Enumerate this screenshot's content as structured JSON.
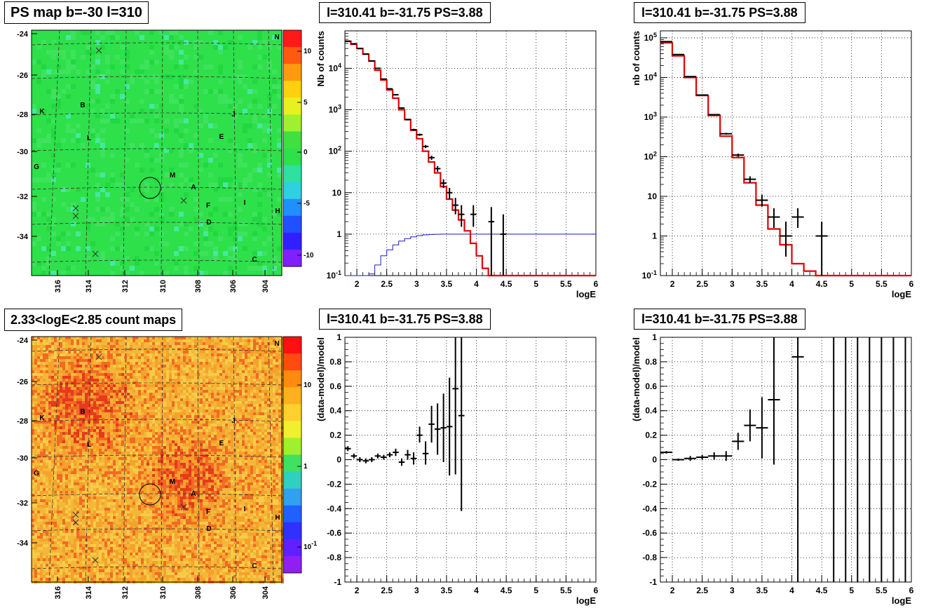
{
  "titles": {
    "ps_map": "PS map b=-30 l=310",
    "count_map": "2.33<logE<2.85 count maps",
    "spec1": "l=310.41 b=-31.75 PS=3.88",
    "spec2": "l=310.41 b=-31.75 PS=3.88",
    "res1": "l=310.41 b=-31.75 PS=3.88",
    "res2": "l=310.41 b=-31.75 PS=3.88"
  },
  "maps": {
    "b_ticks": [
      "-24",
      "-26",
      "-28",
      "-30",
      "-32",
      "-34"
    ],
    "l_ticks": [
      "316",
      "314",
      "312",
      "310",
      "308",
      "306",
      "304"
    ],
    "ps_colorbar_ticks": [
      "10",
      "5",
      "0",
      "-5",
      "-10"
    ],
    "count_colorbar_ticks": [
      "10",
      "1",
      "10^-1"
    ],
    "source_labels": [
      "N",
      "K",
      "B",
      "J",
      "E",
      "L",
      "G",
      "M",
      "A",
      "F",
      "I",
      "H",
      "D",
      "C"
    ],
    "colors": {
      "ps_bg": "#2ee04a",
      "count_bg": "#f0a030",
      "count_hot": "#e84a20"
    }
  },
  "chart_data": [
    {
      "type": "line",
      "panel": "spectrum-1",
      "title": "l=310.41 b=-31.75 PS=3.88",
      "xlabel": "logE",
      "ylabel": "Nb of counts",
      "xlim": [
        1.8,
        6
      ],
      "ylim": [
        0.1,
        80000
      ],
      "yscale": "log",
      "xticks": [
        "2",
        "2.5",
        "3",
        "3.5",
        "4",
        "4.5",
        "5",
        "5.5",
        "6"
      ],
      "yticks": [
        "10^-1",
        "1",
        "10",
        "10^2",
        "10^3",
        "10^4"
      ],
      "grid": true,
      "model_bins": {
        "edges": [
          1.8,
          1.9,
          2.0,
          2.1,
          2.2,
          2.3,
          2.4,
          2.5,
          2.6,
          2.7,
          2.8,
          2.9,
          3.0,
          3.1,
          3.2,
          3.3,
          3.4,
          3.5,
          3.6,
          3.7,
          3.8,
          3.9,
          4.0,
          4.1,
          4.2,
          6.0
        ],
        "values": [
          45000,
          38000,
          30000,
          22000,
          15000,
          9000,
          5200,
          3000,
          1900,
          1000,
          580,
          320,
          200,
          100,
          55,
          30,
          14,
          7,
          3.8,
          2.2,
          1.2,
          0.6,
          0.3,
          0.15,
          0.1
        ]
      },
      "efficiency_bins": {
        "edges": [
          1.8,
          2.2,
          2.3,
          2.4,
          2.5,
          2.6,
          2.7,
          2.8,
          2.9,
          3.0,
          3.1,
          3.2,
          3.3,
          3.4,
          3.5,
          3.6,
          3.7,
          3.8,
          6.0
        ],
        "values": [
          0.1,
          0.11,
          0.18,
          0.3,
          0.42,
          0.55,
          0.68,
          0.78,
          0.86,
          0.92,
          0.96,
          0.98,
          0.99,
          1.0,
          1.0,
          1.0,
          1.0,
          1.0
        ]
      },
      "data_points": [
        {
          "x": 1.85,
          "y": 45000,
          "ylo": 44000,
          "yhi": 46000,
          "xerr": 0.05
        },
        {
          "x": 1.95,
          "y": 39000,
          "ylo": 38000,
          "yhi": 40000,
          "xerr": 0.05
        },
        {
          "x": 2.05,
          "y": 30000,
          "ylo": 29500,
          "yhi": 30500,
          "xerr": 0.05
        },
        {
          "x": 2.15,
          "y": 22000,
          "ylo": 21500,
          "yhi": 22500,
          "xerr": 0.05
        },
        {
          "x": 2.25,
          "y": 15000,
          "ylo": 14700,
          "yhi": 15300,
          "xerr": 0.05
        },
        {
          "x": 2.35,
          "y": 10000,
          "ylo": 9800,
          "yhi": 10200,
          "xerr": 0.05
        },
        {
          "x": 2.45,
          "y": 5500,
          "ylo": 5400,
          "yhi": 5600,
          "xerr": 0.05
        },
        {
          "x": 2.55,
          "y": 3200,
          "ylo": 3100,
          "yhi": 3300,
          "xerr": 0.05
        },
        {
          "x": 2.65,
          "y": 2300,
          "ylo": 2200,
          "yhi": 2400,
          "xerr": 0.05
        },
        {
          "x": 2.75,
          "y": 1100,
          "ylo": 1050,
          "yhi": 1150,
          "xerr": 0.05
        },
        {
          "x": 2.85,
          "y": 580,
          "ylo": 555,
          "yhi": 605,
          "xerr": 0.05
        },
        {
          "x": 2.95,
          "y": 330,
          "ylo": 312,
          "yhi": 348,
          "xerr": 0.05
        },
        {
          "x": 3.05,
          "y": 250,
          "ylo": 235,
          "yhi": 265,
          "xerr": 0.05
        },
        {
          "x": 3.15,
          "y": 130,
          "ylo": 119,
          "yhi": 141,
          "xerr": 0.05
        },
        {
          "x": 3.25,
          "y": 70,
          "ylo": 62,
          "yhi": 78,
          "xerr": 0.05
        },
        {
          "x": 3.35,
          "y": 38,
          "ylo": 32,
          "yhi": 44,
          "xerr": 0.05
        },
        {
          "x": 3.45,
          "y": 17,
          "ylo": 13,
          "yhi": 21,
          "xerr": 0.05
        },
        {
          "x": 3.55,
          "y": 10,
          "ylo": 7,
          "yhi": 13,
          "xerr": 0.05
        },
        {
          "x": 3.65,
          "y": 5,
          "ylo": 3,
          "yhi": 7.5,
          "xerr": 0.05
        },
        {
          "x": 3.75,
          "y": 3,
          "ylo": 1.5,
          "yhi": 5,
          "xerr": 0.05
        },
        {
          "x": 3.95,
          "y": 3,
          "ylo": 1.5,
          "yhi": 5,
          "xerr": 0.05
        },
        {
          "x": 4.25,
          "y": 2,
          "ylo": 0.1,
          "yhi": 4.5,
          "xerr": 0.05
        },
        {
          "x": 4.45,
          "y": 1,
          "ylo": 0.1,
          "yhi": 3,
          "xerr": 0.05
        }
      ]
    },
    {
      "type": "line",
      "panel": "spectrum-2",
      "title": "l=310.41 b=-31.75 PS=3.88",
      "xlabel": "logE",
      "ylabel": "nb of counts",
      "xlim": [
        1.8,
        6
      ],
      "ylim": [
        0.1,
        150000
      ],
      "yscale": "log",
      "xticks": [
        "2",
        "2.5",
        "3",
        "3.5",
        "4",
        "4.5",
        "5",
        "5.5",
        "6"
      ],
      "yticks": [
        "10^-1",
        "1",
        "10",
        "10^2",
        "10^3",
        "10^4",
        "10^5"
      ],
      "grid": true,
      "model_bins": {
        "edges": [
          1.8,
          2.0,
          2.2,
          2.4,
          2.6,
          2.8,
          3.0,
          3.2,
          3.4,
          3.6,
          3.8,
          4.0,
          4.2,
          4.4,
          6.0
        ],
        "values": [
          75000,
          35000,
          10000,
          3500,
          1100,
          330,
          95,
          22,
          6,
          1.5,
          0.6,
          0.2,
          0.13,
          0.1
        ]
      },
      "data_points": [
        {
          "x": 1.9,
          "y": 80000,
          "ylo": 78000,
          "yhi": 82000,
          "xerr": 0.1
        },
        {
          "x": 2.1,
          "y": 38000,
          "ylo": 37000,
          "yhi": 39000,
          "xerr": 0.1
        },
        {
          "x": 2.3,
          "y": 10500,
          "ylo": 10200,
          "yhi": 10800,
          "xerr": 0.1
        },
        {
          "x": 2.5,
          "y": 3600,
          "ylo": 3500,
          "yhi": 3700,
          "xerr": 0.1
        },
        {
          "x": 2.7,
          "y": 1150,
          "ylo": 1100,
          "yhi": 1200,
          "xerr": 0.1
        },
        {
          "x": 2.9,
          "y": 380,
          "ylo": 360,
          "yhi": 400,
          "xerr": 0.1
        },
        {
          "x": 3.1,
          "y": 110,
          "ylo": 100,
          "yhi": 120,
          "xerr": 0.1
        },
        {
          "x": 3.3,
          "y": 27,
          "ylo": 22,
          "yhi": 32,
          "xerr": 0.1
        },
        {
          "x": 3.5,
          "y": 8,
          "ylo": 5.5,
          "yhi": 11,
          "xerr": 0.1
        },
        {
          "x": 3.7,
          "y": 3,
          "ylo": 1.6,
          "yhi": 5,
          "xerr": 0.1
        },
        {
          "x": 3.9,
          "y": 1,
          "ylo": 0.3,
          "yhi": 2.3,
          "xerr": 0.1
        },
        {
          "x": 4.1,
          "y": 3,
          "ylo": 1.6,
          "yhi": 5,
          "xerr": 0.1
        },
        {
          "x": 4.5,
          "y": 1,
          "ylo": 0.1,
          "yhi": 2.3,
          "xerr": 0.1
        }
      ]
    },
    {
      "type": "scatter",
      "panel": "residual-1",
      "title": "l=310.41 b=-31.75 PS=3.88",
      "xlabel": "logE",
      "ylabel": "(data-model)/model",
      "xlim": [
        1.8,
        6
      ],
      "ylim": [
        -1,
        1
      ],
      "xticks": [
        "2",
        "2.5",
        "3",
        "3.5",
        "4",
        "4.5",
        "5",
        "5.5",
        "6"
      ],
      "yticks": [
        "-1",
        "-0.8",
        "-0.6",
        "-0.4",
        "-0.2",
        "0",
        "0.2",
        "0.4",
        "0.6",
        "0.8",
        "1"
      ],
      "grid": true,
      "data_points": [
        {
          "x": 1.85,
          "y": 0.09,
          "ylo": 0.07,
          "yhi": 0.11,
          "xerr": 0.05
        },
        {
          "x": 1.95,
          "y": 0.03,
          "ylo": 0.01,
          "yhi": 0.05,
          "xerr": 0.05
        },
        {
          "x": 2.05,
          "y": 0.0,
          "ylo": -0.02,
          "yhi": 0.02,
          "xerr": 0.05
        },
        {
          "x": 2.15,
          "y": -0.01,
          "ylo": -0.03,
          "yhi": 0.01,
          "xerr": 0.05
        },
        {
          "x": 2.25,
          "y": 0.0,
          "ylo": -0.02,
          "yhi": 0.02,
          "xerr": 0.05
        },
        {
          "x": 2.35,
          "y": 0.03,
          "ylo": 0.01,
          "yhi": 0.05,
          "xerr": 0.05
        },
        {
          "x": 2.45,
          "y": 0.02,
          "ylo": 0.0,
          "yhi": 0.04,
          "xerr": 0.05
        },
        {
          "x": 2.55,
          "y": 0.04,
          "ylo": 0.02,
          "yhi": 0.06,
          "xerr": 0.05
        },
        {
          "x": 2.65,
          "y": 0.06,
          "ylo": 0.03,
          "yhi": 0.09,
          "xerr": 0.05
        },
        {
          "x": 2.75,
          "y": -0.02,
          "ylo": -0.05,
          "yhi": 0.01,
          "xerr": 0.05
        },
        {
          "x": 2.85,
          "y": 0.04,
          "ylo": 0.0,
          "yhi": 0.08,
          "xerr": 0.05
        },
        {
          "x": 2.95,
          "y": 0.01,
          "ylo": -0.04,
          "yhi": 0.06,
          "xerr": 0.05
        },
        {
          "x": 3.05,
          "y": 0.2,
          "ylo": 0.14,
          "yhi": 0.27,
          "xerr": 0.05
        },
        {
          "x": 3.15,
          "y": 0.05,
          "ylo": -0.04,
          "yhi": 0.15,
          "xerr": 0.05
        },
        {
          "x": 3.25,
          "y": 0.29,
          "ylo": 0.14,
          "yhi": 0.44,
          "xerr": 0.05
        },
        {
          "x": 3.35,
          "y": 0.25,
          "ylo": 0.04,
          "yhi": 0.46,
          "xerr": 0.05
        },
        {
          "x": 3.45,
          "y": 0.26,
          "ylo": -0.02,
          "yhi": 0.54,
          "xerr": 0.05
        },
        {
          "x": 3.55,
          "y": 0.27,
          "ylo": -0.13,
          "yhi": 0.67,
          "xerr": 0.05
        },
        {
          "x": 3.65,
          "y": 0.58,
          "ylo": -0.12,
          "yhi": 1.0,
          "xerr": 0.05
        },
        {
          "x": 3.75,
          "y": 0.36,
          "ylo": -0.42,
          "yhi": 1.0,
          "xerr": 0.05
        }
      ]
    },
    {
      "type": "scatter",
      "panel": "residual-2",
      "title": "l=310.41 b=-31.75 PS=3.88",
      "xlabel": "logE",
      "ylabel": "(data-model)/model",
      "xlim": [
        1.8,
        6
      ],
      "ylim": [
        -1,
        1
      ],
      "xticks": [
        "2",
        "2.5",
        "3",
        "3.5",
        "4",
        "4.5",
        "5",
        "5.5",
        "6"
      ],
      "yticks": [
        "-1",
        "-0.8",
        "-0.6",
        "-0.4",
        "-0.2",
        "0",
        "0.2",
        "0.4",
        "0.6",
        "0.8",
        "1"
      ],
      "grid": true,
      "data_points": [
        {
          "x": 1.9,
          "y": 0.06,
          "ylo": 0.05,
          "yhi": 0.07,
          "xerr": 0.1
        },
        {
          "x": 2.1,
          "y": 0.0,
          "ylo": -0.01,
          "yhi": 0.01,
          "xerr": 0.1
        },
        {
          "x": 2.3,
          "y": 0.01,
          "ylo": -0.01,
          "yhi": 0.03,
          "xerr": 0.1
        },
        {
          "x": 2.5,
          "y": 0.02,
          "ylo": 0.0,
          "yhi": 0.04,
          "xerr": 0.1
        },
        {
          "x": 2.7,
          "y": 0.03,
          "ylo": 0.0,
          "yhi": 0.06,
          "xerr": 0.1
        },
        {
          "x": 2.9,
          "y": 0.03,
          "ylo": -0.01,
          "yhi": 0.07,
          "xerr": 0.1
        },
        {
          "x": 3.1,
          "y": 0.15,
          "ylo": 0.08,
          "yhi": 0.22,
          "xerr": 0.1
        },
        {
          "x": 3.3,
          "y": 0.28,
          "ylo": 0.15,
          "yhi": 0.41,
          "xerr": 0.1
        },
        {
          "x": 3.5,
          "y": 0.26,
          "ylo": 0.01,
          "yhi": 0.51,
          "xerr": 0.1
        },
        {
          "x": 3.7,
          "y": 0.49,
          "ylo": -0.04,
          "yhi": 1.0,
          "xerr": 0.1
        },
        {
          "x": 4.1,
          "y": 0.84,
          "ylo": -1.0,
          "yhi": 1.0,
          "xerr": 0.1
        },
        {
          "x": 4.7,
          "y": 1.0,
          "ylo": -1.0,
          "yhi": 1.0,
          "xerr": 0.0
        },
        {
          "x": 4.9,
          "y": 1.0,
          "ylo": -1.0,
          "yhi": 1.0,
          "xerr": 0.0
        },
        {
          "x": 5.1,
          "y": 1.0,
          "ylo": -1.0,
          "yhi": 1.0,
          "xerr": 0.0
        },
        {
          "x": 5.3,
          "y": 1.0,
          "ylo": -1.0,
          "yhi": 1.0,
          "xerr": 0.0
        },
        {
          "x": 5.5,
          "y": 1.0,
          "ylo": -1.0,
          "yhi": 1.0,
          "xerr": 0.0
        },
        {
          "x": 5.7,
          "y": 1.0,
          "ylo": -1.0,
          "yhi": 1.0,
          "xerr": 0.0
        },
        {
          "x": 5.9,
          "y": 1.0,
          "ylo": -1.0,
          "yhi": 1.0,
          "xerr": 0.0
        }
      ]
    }
  ]
}
